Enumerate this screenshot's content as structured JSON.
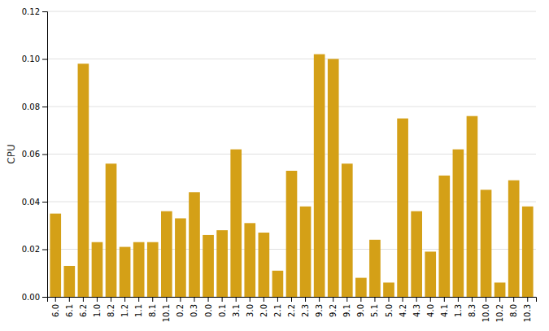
{
  "chart_data": {
    "type": "bar",
    "categories": [
      "6.0",
      "6.1",
      "6.2",
      "1.0",
      "8.2",
      "1.2",
      "1.1",
      "8.1",
      "10.1",
      "0.2",
      "0.3",
      "0.0",
      "0.1",
      "3.1",
      "3.0",
      "2.0",
      "2.1",
      "2.2",
      "2.3",
      "9.3",
      "9.2",
      "9.1",
      "9.0",
      "5.1",
      "5.0",
      "4.2",
      "4.3",
      "4.0",
      "4.1",
      "1.3",
      "8.3",
      "10.0",
      "10.2",
      "8.0",
      "10.3"
    ],
    "values": [
      0.035,
      0.013,
      0.098,
      0.023,
      0.056,
      0.021,
      0.023,
      0.023,
      0.036,
      0.033,
      0.044,
      0.026,
      0.028,
      0.062,
      0.031,
      0.027,
      0.011,
      0.053,
      0.038,
      0.102,
      0.1,
      0.056,
      0.008,
      0.024,
      0.006,
      0.075,
      0.036,
      0.019,
      0.051,
      0.062,
      0.076,
      0.045,
      0.006,
      0.049,
      0.038
    ],
    "color": "#D4A017",
    "ylabel": "CPU",
    "ylim": [
      0,
      0.12
    ],
    "yticks": [
      {
        "value": 0,
        "label": "0.00"
      },
      0.02,
      0.04,
      0.06,
      0.08,
      {
        "value": 0.1,
        "label": "0.10"
      },
      0.12
    ],
    "grid": true
  }
}
